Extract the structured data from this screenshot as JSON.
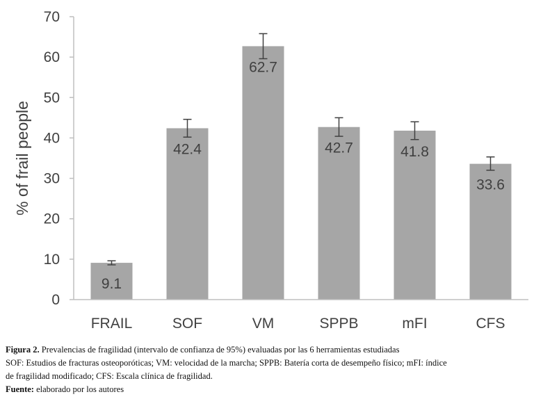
{
  "chart_data": {
    "type": "bar",
    "categories": [
      "FRAIL",
      "SOF",
      "VM",
      "SPPB",
      "mFI",
      "CFS"
    ],
    "values": [
      9.1,
      42.4,
      62.7,
      42.7,
      41.8,
      33.6
    ],
    "error_low": [
      8.6,
      40.2,
      59.6,
      40.4,
      39.6,
      32.0
    ],
    "error_high": [
      9.6,
      44.6,
      65.8,
      45.0,
      44.0,
      35.3
    ],
    "data_labels": [
      "9.1",
      "42.4",
      "62.7",
      "42.7",
      "41.8",
      "33.6"
    ],
    "ylabel": "% of frail people",
    "ylim": [
      0,
      70
    ],
    "yticks": [
      0,
      10,
      20,
      30,
      40,
      50,
      60,
      70
    ],
    "grid": false,
    "bar_color": "#a6a6a6",
    "axis_color": "#bfbfbf",
    "text_color": "#404040",
    "error_bar_color": "#404040"
  },
  "caption": {
    "figure_label": "Figura  2.",
    "figure_text": "Prevalencias de fragilidad (intervalo de confianza de 95%) evaluadas por las 6 herramientas estudiadas",
    "abbrev_line1": "SOF: Estudios de fracturas osteoporóticas; VM: velocidad de la marcha; SPPB: Batería corta de desempeño físico; mFI: índice",
    "abbrev_line2": "de fragilidad modificado; CFS: Escala clínica de fragilidad.",
    "source_label": "Fuente:",
    "source_text": "elaborado por los autores"
  }
}
